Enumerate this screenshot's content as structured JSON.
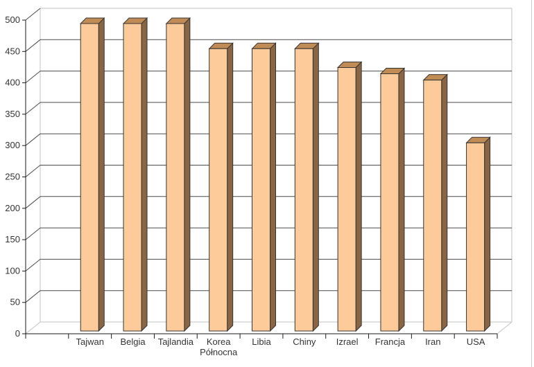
{
  "page": {
    "background": "#ffffff",
    "right_border_color": "#cccccc"
  },
  "chart_data": {
    "type": "bar",
    "projection": "3d-column",
    "title": "",
    "xlabel": "",
    "ylabel": "",
    "legend": false,
    "grid": true,
    "categories": [
      "Tajwan",
      "Belgia",
      "Tajlandia",
      "Korea Północna",
      "Libia",
      "Chiny",
      "Izrael",
      "Francja",
      "Iran",
      "USA"
    ],
    "category_lines": [
      [
        "Tajwan"
      ],
      [
        "Belgia"
      ],
      [
        "Tajlandia"
      ],
      [
        "Korea",
        "Północna"
      ],
      [
        "Libia"
      ],
      [
        "Chiny"
      ],
      [
        "Izrael"
      ],
      [
        "Francja"
      ],
      [
        "Iran"
      ],
      [
        "USA"
      ]
    ],
    "values": [
      490,
      490,
      490,
      450,
      450,
      450,
      420,
      410,
      400,
      300
    ],
    "ylim": [
      0,
      500
    ],
    "ytick_step": 50,
    "ytick_labels": [
      "0",
      "50",
      "100",
      "150",
      "200",
      "250",
      "300",
      "350",
      "400",
      "450",
      "500"
    ],
    "colors": {
      "bar_front": "#FCCB99",
      "bar_top": "#C08B55",
      "bar_side": "#8A6543",
      "bar_stroke": "#333333",
      "gridline": "#4a4a4a",
      "wall_edge": "#c2c2c2",
      "axis": "#1a1a1a",
      "label_text": "#333333",
      "background": "#ffffff"
    }
  }
}
